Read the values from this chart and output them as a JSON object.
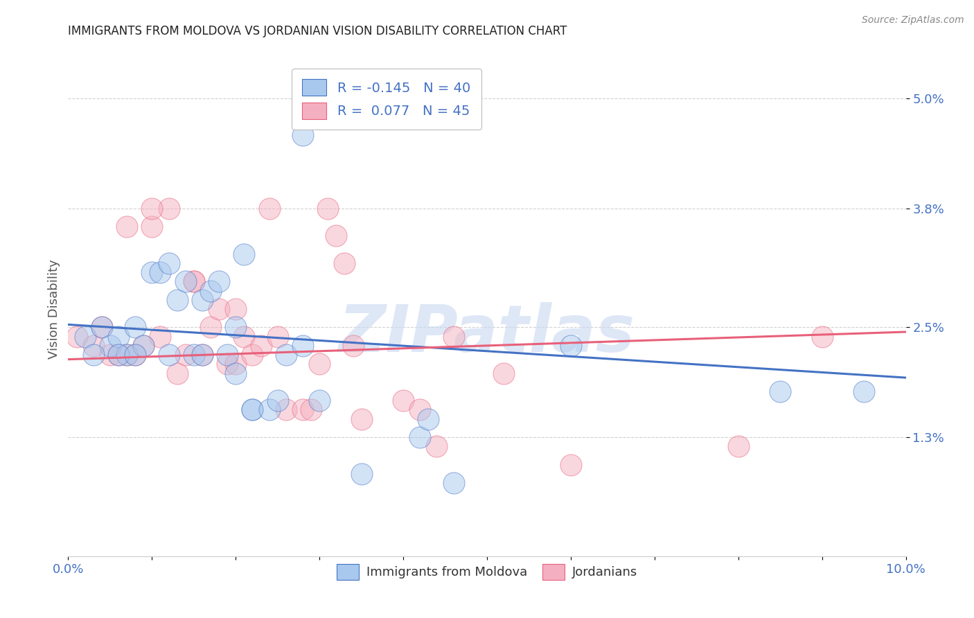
{
  "title": "IMMIGRANTS FROM MOLDOVA VS JORDANIAN VISION DISABILITY CORRELATION CHART",
  "source": "Source: ZipAtlas.com",
  "ylabel": "Vision Disability",
  "watermark": "ZIPatlas",
  "xlim": [
    0.0,
    0.1
  ],
  "ylim": [
    0.0,
    0.054
  ],
  "xtick_vals": [
    0.0,
    0.1
  ],
  "xtick_labels": [
    "0.0%",
    "10.0%"
  ],
  "ytick_vals": [
    0.013,
    0.025,
    0.038,
    0.05
  ],
  "ytick_labels": [
    "1.3%",
    "2.5%",
    "3.8%",
    "5.0%"
  ],
  "legend1_R": "-0.145",
  "legend1_N": "40",
  "legend2_R": "0.077",
  "legend2_N": "45",
  "color_blue": "#A8C8EE",
  "color_pink": "#F4B0C0",
  "line_blue": "#4472C4",
  "line_pink": "#E8607A",
  "blue_trend_x0": 0.0,
  "blue_trend_y0": 0.0253,
  "blue_trend_x1": 0.1,
  "blue_trend_y1": 0.0195,
  "pink_trend_x0": 0.0,
  "pink_trend_y0": 0.0215,
  "pink_trend_x1": 0.1,
  "pink_trend_y1": 0.0245,
  "scatter_blue_x": [
    0.002,
    0.004,
    0.005,
    0.006,
    0.007,
    0.008,
    0.009,
    0.01,
    0.011,
    0.012,
    0.013,
    0.014,
    0.015,
    0.016,
    0.017,
    0.018,
    0.019,
    0.02,
    0.021,
    0.022,
    0.022,
    0.024,
    0.025,
    0.026,
    0.028,
    0.028,
    0.03,
    0.035,
    0.042,
    0.043,
    0.046,
    0.06,
    0.085,
    0.095,
    0.003,
    0.006,
    0.008,
    0.012,
    0.016,
    0.02
  ],
  "scatter_blue_y": [
    0.024,
    0.025,
    0.023,
    0.024,
    0.022,
    0.025,
    0.023,
    0.031,
    0.031,
    0.032,
    0.028,
    0.03,
    0.022,
    0.028,
    0.029,
    0.03,
    0.022,
    0.025,
    0.033,
    0.016,
    0.016,
    0.016,
    0.017,
    0.022,
    0.023,
    0.046,
    0.017,
    0.009,
    0.013,
    0.015,
    0.008,
    0.023,
    0.018,
    0.018,
    0.022,
    0.022,
    0.022,
    0.022,
    0.022,
    0.02
  ],
  "scatter_pink_x": [
    0.001,
    0.003,
    0.004,
    0.005,
    0.006,
    0.007,
    0.008,
    0.009,
    0.01,
    0.011,
    0.012,
    0.013,
    0.014,
    0.015,
    0.016,
    0.017,
    0.018,
    0.019,
    0.02,
    0.021,
    0.022,
    0.023,
    0.024,
    0.025,
    0.026,
    0.028,
    0.029,
    0.03,
    0.031,
    0.032,
    0.033,
    0.034,
    0.035,
    0.04,
    0.042,
    0.044,
    0.046,
    0.052,
    0.06,
    0.08,
    0.09,
    0.007,
    0.01,
    0.015,
    0.02
  ],
  "scatter_pink_y": [
    0.024,
    0.023,
    0.025,
    0.022,
    0.022,
    0.022,
    0.022,
    0.023,
    0.036,
    0.024,
    0.038,
    0.02,
    0.022,
    0.03,
    0.022,
    0.025,
    0.027,
    0.021,
    0.021,
    0.024,
    0.022,
    0.023,
    0.038,
    0.024,
    0.016,
    0.016,
    0.016,
    0.021,
    0.038,
    0.035,
    0.032,
    0.023,
    0.015,
    0.017,
    0.016,
    0.012,
    0.024,
    0.02,
    0.01,
    0.012,
    0.024,
    0.036,
    0.038,
    0.03,
    0.027
  ]
}
